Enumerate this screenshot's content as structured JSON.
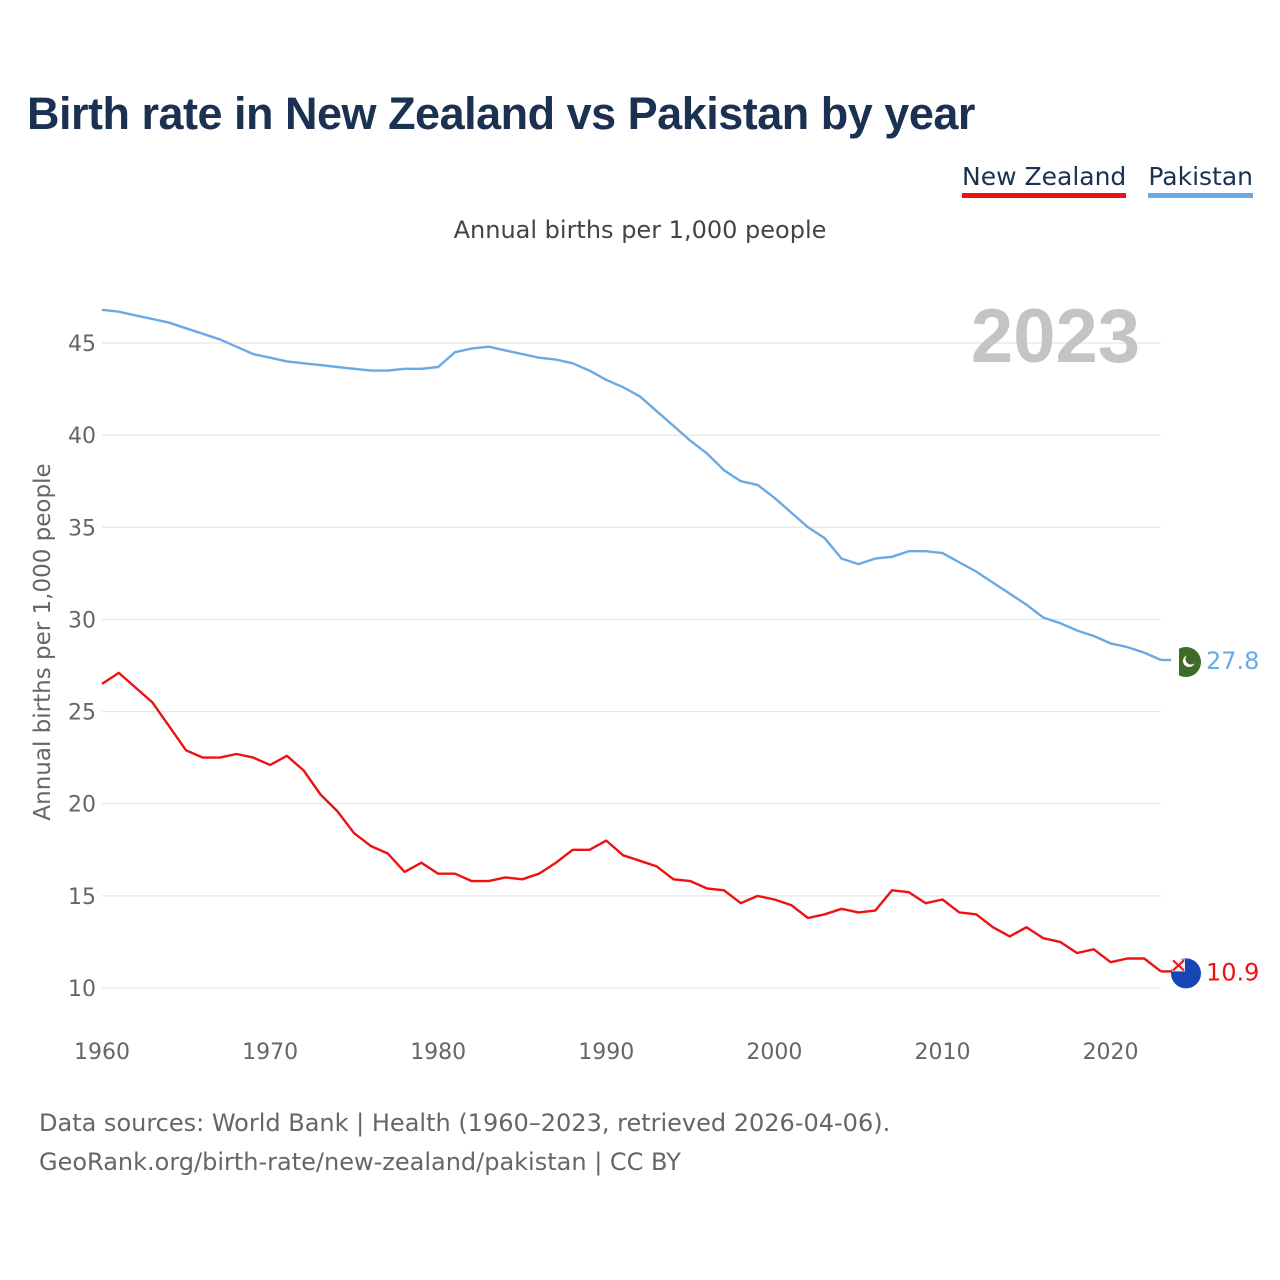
{
  "title": "Birth rate in New Zealand vs Pakistan by year",
  "subtitle": "Annual births per 1,000 people",
  "year_label": "2023",
  "footer": {
    "line1": "Data sources: World Bank | Health (1960–2023, retrieved 2026-04-06).",
    "line2": "GeoRank.org/birth-rate/new-zealand/pakistan | CC BY"
  },
  "colors": {
    "new_zealand": "#ee1111",
    "pakistan": "#6aaae4",
    "grid": "#e6e6e6",
    "pk_flag": "#3e6b2a",
    "nz_flag": "#1646b4"
  },
  "chart_data": {
    "type": "line",
    "title": "Birth rate in New Zealand vs Pakistan by year",
    "xlabel": "",
    "ylabel": "Annual births per 1,000 people",
    "xlim": [
      1960,
      2023
    ],
    "ylim": [
      8.5,
      48.5
    ],
    "x_ticks": [
      1960,
      1970,
      1980,
      1990,
      2000,
      2010,
      2020
    ],
    "y_ticks": [
      10,
      15,
      20,
      25,
      30,
      35,
      40,
      45
    ],
    "grid": true,
    "legend_position": "top-right",
    "x": [
      1960,
      1961,
      1962,
      1963,
      1964,
      1965,
      1966,
      1967,
      1968,
      1969,
      1970,
      1971,
      1972,
      1973,
      1974,
      1975,
      1976,
      1977,
      1978,
      1979,
      1980,
      1981,
      1982,
      1983,
      1984,
      1985,
      1986,
      1987,
      1988,
      1989,
      1990,
      1991,
      1992,
      1993,
      1994,
      1995,
      1996,
      1997,
      1998,
      1999,
      2000,
      2001,
      2002,
      2003,
      2004,
      2005,
      2006,
      2007,
      2008,
      2009,
      2010,
      2011,
      2012,
      2013,
      2014,
      2015,
      2016,
      2017,
      2018,
      2019,
      2020,
      2021,
      2022,
      2023
    ],
    "series": [
      {
        "name": "New Zealand",
        "end_label": "10.9",
        "values": [
          26.5,
          27.1,
          26.3,
          25.5,
          24.2,
          22.9,
          22.5,
          22.5,
          22.7,
          22.5,
          22.1,
          22.6,
          21.8,
          20.5,
          19.6,
          18.4,
          17.7,
          17.3,
          16.3,
          16.8,
          16.2,
          16.2,
          15.8,
          15.8,
          16.0,
          15.9,
          16.2,
          16.8,
          17.5,
          17.5,
          18.0,
          17.2,
          16.9,
          16.6,
          15.9,
          15.8,
          15.4,
          15.3,
          14.6,
          15.0,
          14.8,
          14.5,
          13.8,
          14.0,
          14.3,
          14.1,
          14.2,
          15.3,
          15.2,
          14.6,
          14.8,
          14.1,
          14.0,
          13.3,
          12.8,
          13.3,
          12.7,
          12.5,
          11.9,
          12.1,
          11.4,
          11.6,
          11.6,
          10.9
        ]
      },
      {
        "name": "Pakistan",
        "end_label": "27.8",
        "values": [
          46.8,
          46.7,
          46.5,
          46.3,
          46.1,
          45.8,
          45.5,
          45.2,
          44.8,
          44.4,
          44.2,
          44.0,
          43.9,
          43.8,
          43.7,
          43.6,
          43.5,
          43.5,
          43.6,
          43.6,
          43.7,
          44.5,
          44.7,
          44.8,
          44.6,
          44.4,
          44.2,
          44.1,
          43.9,
          43.5,
          43.0,
          42.6,
          42.1,
          41.3,
          40.5,
          39.7,
          39.0,
          38.1,
          37.5,
          37.3,
          36.6,
          35.8,
          35.0,
          34.4,
          33.3,
          33.0,
          33.3,
          33.4,
          33.7,
          33.7,
          33.6,
          33.1,
          32.6,
          32.0,
          31.4,
          30.8,
          30.1,
          29.8,
          29.4,
          29.1,
          28.7,
          28.5,
          28.2,
          27.8
        ]
      }
    ]
  }
}
